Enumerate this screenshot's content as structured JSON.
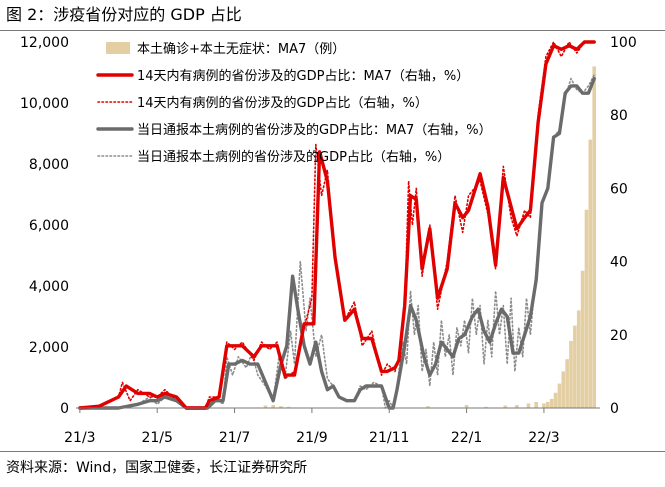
{
  "figure": {
    "title": "图 2：涉疫省份对应的 GDP 占比",
    "source": "资料来源：Wind，国家卫健委，长江证券研究所"
  },
  "chart_data": {
    "type": "line",
    "left_axis": {
      "ticks": [
        "0",
        "2,000",
        "4,000",
        "6,000",
        "8,000",
        "10,000",
        "12,000"
      ],
      "ylim": [
        0,
        12000
      ]
    },
    "right_axis": {
      "ticks": [
        "0",
        "20",
        "40",
        "60",
        "80",
        "100"
      ],
      "ylim": [
        0,
        100
      ]
    },
    "x_ticks": [
      "21/3",
      "21/5",
      "21/7",
      "21/9",
      "21/11",
      "22/1",
      "22/3"
    ],
    "x_tick_months": [
      0,
      2,
      4,
      6,
      8,
      10,
      12
    ],
    "x_range_months": [
      -0.1,
      13.45
    ],
    "legend_position": "top-left",
    "colors": {
      "bar": "#e3cfa3",
      "red": "#e00000",
      "gray": "#6b6b6b",
      "gray_dot": "#8c8c8c"
    },
    "series": [
      {
        "name": "本土确诊+本土无症状：MA7（例）",
        "axis": "left",
        "style": "bar",
        "x": [
          0,
          1,
          2,
          3,
          3.5,
          4,
          4.3,
          4.6,
          4.8,
          5.0,
          5.2,
          5.4,
          5.6,
          5.8,
          6.0,
          6.4,
          7.0,
          7.5,
          8.0,
          9.0,
          10.0,
          10.5,
          11.0,
          11.3,
          11.6,
          11.8,
          12.0,
          12.1,
          12.2,
          12.3,
          12.4,
          12.5,
          12.6,
          12.7,
          12.8,
          12.9,
          13.0,
          13.1,
          13.2,
          13.3
        ],
        "y": [
          0,
          0,
          0,
          0,
          0,
          0,
          0,
          20,
          80,
          100,
          60,
          40,
          20,
          10,
          10,
          0,
          0,
          10,
          20,
          60,
          100,
          40,
          80,
          100,
          150,
          200,
          150,
          200,
          300,
          500,
          800,
          1200,
          1600,
          2200,
          2700,
          3200,
          4500,
          6500,
          8800,
          11200
        ]
      },
      {
        "name": "14天内有病例的省份涉及的GDP占比：MA7（右轴，%）",
        "axis": "right",
        "style": "solid",
        "x": [
          0,
          0.5,
          1.0,
          1.2,
          1.5,
          1.8,
          2.0,
          2.2,
          2.5,
          2.75,
          3.0,
          3.25,
          3.35,
          3.6,
          3.8,
          4.0,
          4.2,
          4.5,
          4.7,
          4.9,
          5.1,
          5.3,
          5.55,
          5.8,
          6.05,
          6.2,
          6.4,
          6.6,
          6.85,
          7.1,
          7.3,
          7.55,
          7.8,
          7.95,
          8.15,
          8.25,
          8.4,
          8.55,
          8.7,
          8.85,
          9.05,
          9.25,
          9.5,
          9.7,
          9.9,
          10.05,
          10.35,
          10.55,
          10.75,
          10.95,
          11.15,
          11.3,
          11.5,
          11.65,
          11.85,
          12.05,
          12.25,
          12.45,
          12.65,
          12.85,
          13.05,
          13.3
        ],
        "y": [
          0,
          0.5,
          3,
          6,
          4,
          4,
          3,
          4,
          3,
          0,
          0,
          0,
          2,
          3,
          17,
          17,
          17,
          14,
          17,
          17,
          17,
          9,
          9,
          23,
          23,
          70,
          62,
          41,
          24,
          27,
          19,
          19,
          10,
          10,
          11,
          13,
          28,
          58,
          57,
          38,
          49,
          30,
          38,
          56,
          52,
          54,
          64,
          55,
          39,
          63,
          55,
          49,
          52,
          54,
          78,
          94,
          99,
          98,
          99,
          98,
          100,
          100
        ]
      },
      {
        "name": "14天内有病例的省份涉及的GDP占比（右轴，%）",
        "axis": "right",
        "style": "dotted",
        "x": [
          0,
          0.5,
          1.0,
          1.1,
          1.3,
          1.5,
          1.8,
          2.0,
          2.2,
          2.5,
          2.75,
          3.0,
          3.25,
          3.35,
          3.6,
          3.8,
          4.0,
          4.2,
          4.5,
          4.7,
          4.9,
          5.1,
          5.3,
          5.55,
          5.8,
          6.0,
          6.1,
          6.25,
          6.4,
          6.6,
          6.85,
          7.1,
          7.3,
          7.55,
          7.8,
          7.95,
          8.15,
          8.25,
          8.4,
          8.5,
          8.6,
          8.7,
          8.85,
          9.05,
          9.25,
          9.5,
          9.7,
          9.9,
          10.05,
          10.35,
          10.55,
          10.75,
          10.95,
          11.15,
          11.3,
          11.5,
          11.65,
          11.85,
          12.05,
          12.25,
          12.45,
          12.65,
          12.85,
          13.05,
          13.3
        ],
        "y": [
          0,
          0.5,
          3,
          7,
          2,
          5,
          3,
          3,
          5,
          2,
          0,
          0,
          0,
          3,
          3,
          18,
          16,
          18,
          13,
          18,
          16,
          18,
          8,
          10,
          22,
          30,
          72,
          58,
          65,
          40,
          24,
          29,
          17,
          21,
          9,
          12,
          10,
          14,
          27,
          62,
          50,
          60,
          36,
          50,
          27,
          40,
          58,
          48,
          58,
          62,
          53,
          38,
          66,
          52,
          47,
          54,
          52,
          80,
          96,
          100,
          96,
          100,
          97,
          100,
          100
        ]
      },
      {
        "name": "当日通报本土病例的省份涉及的GDP占比：MA7（右轴，%）",
        "axis": "right",
        "style": "solid",
        "x": [
          0,
          0.5,
          1.0,
          1.5,
          1.8,
          2.0,
          2.2,
          2.5,
          2.75,
          3.0,
          3.3,
          3.5,
          3.7,
          3.85,
          4.0,
          4.2,
          4.4,
          4.6,
          4.8,
          5.0,
          5.2,
          5.35,
          5.5,
          5.65,
          5.8,
          5.95,
          6.1,
          6.25,
          6.4,
          6.55,
          6.7,
          6.9,
          7.1,
          7.25,
          7.4,
          7.6,
          7.8,
          8.0,
          8.1,
          8.2,
          8.4,
          8.55,
          8.7,
          8.9,
          9.05,
          9.2,
          9.35,
          9.5,
          9.65,
          9.8,
          9.95,
          10.15,
          10.3,
          10.45,
          10.6,
          10.75,
          10.9,
          11.05,
          11.2,
          11.35,
          11.5,
          11.65,
          11.8,
          11.95,
          12.1,
          12.25,
          12.4,
          12.55,
          12.7,
          12.85,
          13.0,
          13.15,
          13.3
        ],
        "y": [
          0,
          0,
          0,
          1,
          2,
          2,
          3,
          2,
          0,
          0,
          0,
          2,
          2,
          12,
          12,
          13,
          12,
          12,
          7,
          2,
          12,
          17,
          36,
          26,
          17,
          12,
          18,
          10,
          5,
          6,
          3,
          2,
          2,
          5,
          6,
          6,
          6,
          0,
          0,
          5,
          17,
          28,
          24,
          14,
          9,
          12,
          18,
          16,
          14,
          19,
          20,
          25,
          27,
          21,
          18,
          23,
          27,
          25,
          15,
          15,
          20,
          25,
          35,
          56,
          60,
          74,
          75,
          86,
          88,
          88,
          86,
          86,
          90
        ]
      },
      {
        "name": "当日通报本土病例的省份涉及的GDP占比（右轴，%）",
        "axis": "right",
        "style": "dotted",
        "x": [
          0,
          0.5,
          1.0,
          1.5,
          1.8,
          2.0,
          2.2,
          2.5,
          2.75,
          3.0,
          3.3,
          3.5,
          3.7,
          3.8,
          3.95,
          4.1,
          4.3,
          4.45,
          4.6,
          4.8,
          5.0,
          5.15,
          5.3,
          5.45,
          5.55,
          5.7,
          5.85,
          5.95,
          6.1,
          6.25,
          6.4,
          6.55,
          6.7,
          6.9,
          7.1,
          7.25,
          7.4,
          7.6,
          7.8,
          7.9,
          8.0,
          8.1,
          8.2,
          8.35,
          8.45,
          8.55,
          8.65,
          8.75,
          8.85,
          8.95,
          9.05,
          9.15,
          9.25,
          9.35,
          9.45,
          9.55,
          9.65,
          9.75,
          9.85,
          9.95,
          10.05,
          10.15,
          10.25,
          10.35,
          10.45,
          10.55,
          10.65,
          10.75,
          10.85,
          10.95,
          11.05,
          11.15,
          11.25,
          11.35,
          11.45,
          11.55,
          11.65,
          11.8,
          11.95,
          12.1,
          12.25,
          12.4,
          12.55,
          12.7,
          12.85,
          13.0,
          13.15,
          13.3
        ],
        "y": [
          0,
          0,
          0,
          1,
          3,
          1,
          3,
          2,
          0,
          0,
          0,
          3,
          1,
          14,
          9,
          14,
          11,
          15,
          9,
          6,
          2,
          14,
          8,
          21,
          12,
          40,
          21,
          30,
          14,
          20,
          8,
          6,
          3,
          2,
          2,
          6,
          5,
          7,
          6,
          0,
          2,
          0,
          6,
          18,
          12,
          32,
          20,
          28,
          10,
          16,
          6,
          18,
          9,
          24,
          14,
          20,
          9,
          22,
          17,
          24,
          15,
          30,
          20,
          28,
          12,
          24,
          14,
          32,
          20,
          28,
          12,
          30,
          10,
          22,
          14,
          30,
          20,
          38,
          56,
          60,
          74,
          76,
          85,
          90,
          87,
          86,
          88,
          91
        ]
      }
    ]
  }
}
